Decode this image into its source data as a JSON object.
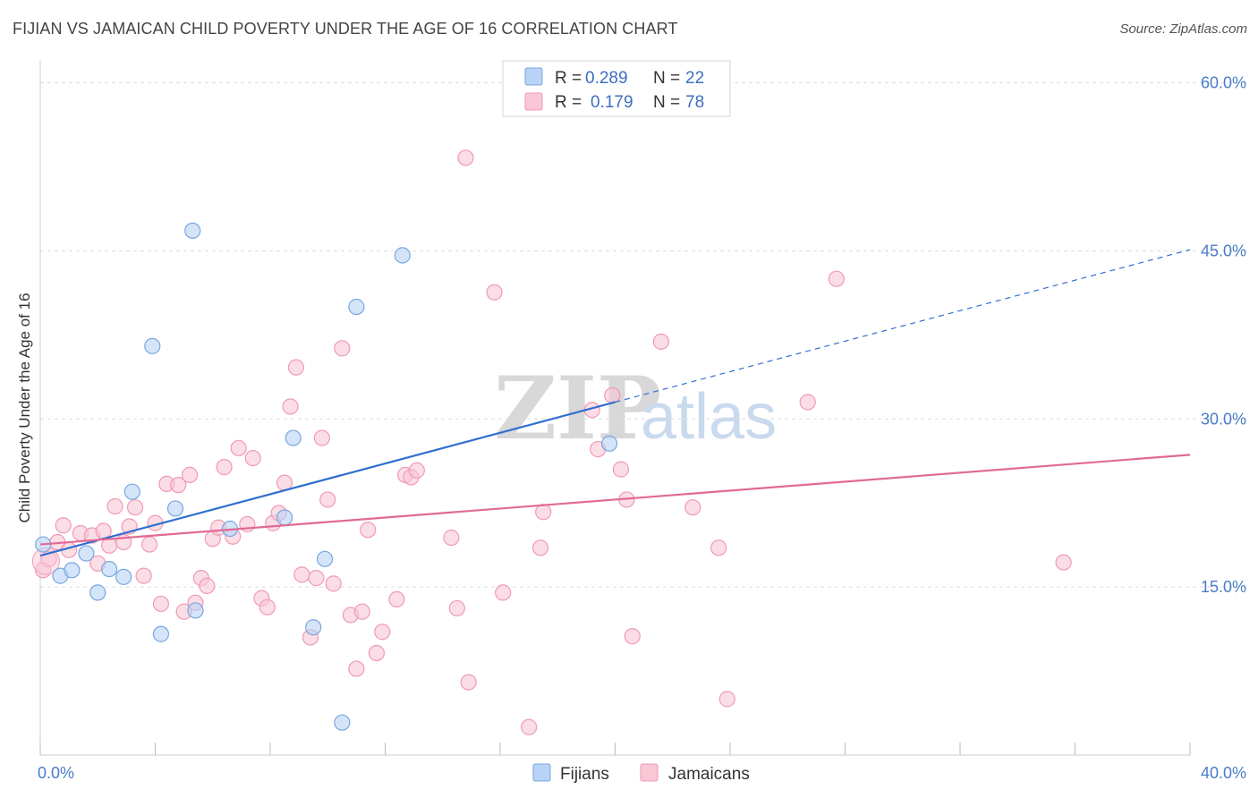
{
  "title": "FIJIAN VS JAMAICAN CHILD POVERTY UNDER THE AGE OF 16 CORRELATION CHART",
  "source": "Source: ZipAtlas.com",
  "watermark": {
    "zip": "ZIP",
    "atlas": "atlas"
  },
  "colors": {
    "fijian_fill": "#b8d3f5",
    "fijian_stroke": "#7aa6de",
    "fijian_line": "#2f6fcf",
    "jamaican_fill": "#f9c6d5",
    "jamaican_stroke": "#ef9ab4",
    "jamaican_line": "#e06a96",
    "tick_label": "#4a7cc9",
    "grid": "#dddddd"
  },
  "legend": {
    "rows": [
      {
        "r_label": "R = ",
        "r_value": "0.289",
        "n_label": "N = ",
        "n_value": "22"
      },
      {
        "r_label": "R = ",
        "r_value": "0.179",
        "n_label": "N = ",
        "n_value": "78"
      }
    ]
  },
  "chart_data": {
    "type": "scatter",
    "title": "FIJIAN VS JAMAICAN CHILD POVERTY UNDER THE AGE OF 16 CORRELATION CHART",
    "xlabel": "",
    "ylabel": "Child Poverty Under the Age of 16",
    "xlim": [
      0,
      40
    ],
    "ylim": [
      0,
      61
    ],
    "x_tick_labels": [
      "0.0%",
      "40.0%"
    ],
    "y_ticks": [
      15,
      30,
      45,
      60
    ],
    "y_tick_labels": [
      "15.0%",
      "30.0%",
      "45.0%",
      "60.0%"
    ],
    "grid": true,
    "legend_position": "top-center",
    "series": [
      {
        "name": "Fijians",
        "R": 0.289,
        "N": 22,
        "trend": {
          "x0": 0,
          "y0": 17.8,
          "x1": 20,
          "y1": 31.5,
          "dashed_to_x": 40,
          "dashed_to_y": 45.1
        },
        "points": [
          [
            0.1,
            18.8
          ],
          [
            0.7,
            16.0
          ],
          [
            1.1,
            16.5
          ],
          [
            1.6,
            18.0
          ],
          [
            2.0,
            14.5
          ],
          [
            2.4,
            16.6
          ],
          [
            2.9,
            15.9
          ],
          [
            3.2,
            23.5
          ],
          [
            3.9,
            36.5
          ],
          [
            4.2,
            10.8
          ],
          [
            4.7,
            22.0
          ],
          [
            5.3,
            46.8
          ],
          [
            5.4,
            12.9
          ],
          [
            6.6,
            20.2
          ],
          [
            8.5,
            21.2
          ],
          [
            8.8,
            28.3
          ],
          [
            9.5,
            11.4
          ],
          [
            9.9,
            17.5
          ],
          [
            10.5,
            2.9
          ],
          [
            11.0,
            40.0
          ],
          [
            12.6,
            44.6
          ],
          [
            19.8,
            27.8
          ]
        ]
      },
      {
        "name": "Jamaicans",
        "R": 0.179,
        "N": 78,
        "trend": {
          "x0": 0,
          "y0": 18.8,
          "x1": 40,
          "y1": 26.8
        },
        "points": [
          [
            0.1,
            16.5
          ],
          [
            0.3,
            17.5
          ],
          [
            0.6,
            19.0
          ],
          [
            0.8,
            20.5
          ],
          [
            1.0,
            18.3
          ],
          [
            1.4,
            19.8
          ],
          [
            1.8,
            19.6
          ],
          [
            2.0,
            17.1
          ],
          [
            2.2,
            20.0
          ],
          [
            2.4,
            18.7
          ],
          [
            2.6,
            22.2
          ],
          [
            2.9,
            19.0
          ],
          [
            3.1,
            20.4
          ],
          [
            3.3,
            22.1
          ],
          [
            3.6,
            16.0
          ],
          [
            3.8,
            18.8
          ],
          [
            4.0,
            20.7
          ],
          [
            4.2,
            13.5
          ],
          [
            4.4,
            24.2
          ],
          [
            4.8,
            24.1
          ],
          [
            5.0,
            12.8
          ],
          [
            5.2,
            25.0
          ],
          [
            5.4,
            13.6
          ],
          [
            5.6,
            15.8
          ],
          [
            5.8,
            15.1
          ],
          [
            6.0,
            19.3
          ],
          [
            6.2,
            20.3
          ],
          [
            6.4,
            25.7
          ],
          [
            6.7,
            19.5
          ],
          [
            6.9,
            27.4
          ],
          [
            7.2,
            20.6
          ],
          [
            7.4,
            26.5
          ],
          [
            7.7,
            14.0
          ],
          [
            7.9,
            13.2
          ],
          [
            8.1,
            20.7
          ],
          [
            8.3,
            21.6
          ],
          [
            8.5,
            24.3
          ],
          [
            8.7,
            31.1
          ],
          [
            8.9,
            34.6
          ],
          [
            9.1,
            16.1
          ],
          [
            9.4,
            10.5
          ],
          [
            9.6,
            15.8
          ],
          [
            9.8,
            28.3
          ],
          [
            10.0,
            22.8
          ],
          [
            10.2,
            15.3
          ],
          [
            10.5,
            36.3
          ],
          [
            10.8,
            12.5
          ],
          [
            11.0,
            7.7
          ],
          [
            11.2,
            12.8
          ],
          [
            11.4,
            20.1
          ],
          [
            11.7,
            9.1
          ],
          [
            11.9,
            11.0
          ],
          [
            12.4,
            13.9
          ],
          [
            12.7,
            25.0
          ],
          [
            12.9,
            24.8
          ],
          [
            13.1,
            25.4
          ],
          [
            14.3,
            19.4
          ],
          [
            14.5,
            13.1
          ],
          [
            14.8,
            53.3
          ],
          [
            14.9,
            6.5
          ],
          [
            15.8,
            41.3
          ],
          [
            16.1,
            14.5
          ],
          [
            17.0,
            2.5
          ],
          [
            17.5,
            21.7
          ],
          [
            17.4,
            18.5
          ],
          [
            19.2,
            30.8
          ],
          [
            19.4,
            27.3
          ],
          [
            19.9,
            32.1
          ],
          [
            20.2,
            25.5
          ],
          [
            20.4,
            22.8
          ],
          [
            20.6,
            10.6
          ],
          [
            21.6,
            36.9
          ],
          [
            22.7,
            22.1
          ],
          [
            23.6,
            18.5
          ],
          [
            23.9,
            5.0
          ],
          [
            26.7,
            31.5
          ],
          [
            27.7,
            42.5
          ],
          [
            35.6,
            17.2
          ]
        ]
      }
    ]
  }
}
